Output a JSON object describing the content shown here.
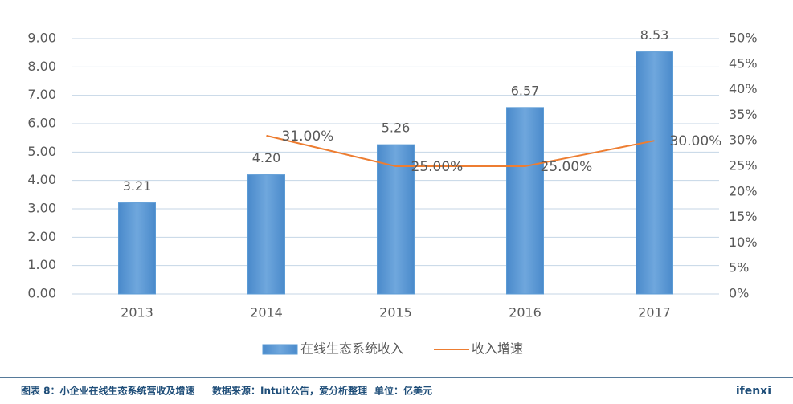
{
  "chart_data": {
    "type": "combo",
    "categories": [
      "2013",
      "2014",
      "2015",
      "2016",
      "2017"
    ],
    "series": [
      {
        "name": "在线生态系统收入",
        "type": "bar",
        "color": "#5b9bd5",
        "values": [
          3.21,
          4.2,
          5.26,
          6.57,
          8.53
        ],
        "value_labels": [
          "3.21",
          "4.20",
          "5.26",
          "6.57",
          "8.53"
        ]
      },
      {
        "name": "收入增速",
        "type": "line",
        "axis": "y2",
        "color": "#ed7d31",
        "values": [
          null,
          31,
          25,
          25,
          30
        ],
        "value_labels": [
          null,
          "31.00%",
          "25.00%",
          "25.00%",
          "30.00%"
        ]
      }
    ],
    "ylim": [
      0,
      9
    ],
    "yticks": [
      {
        "value": 0,
        "label": "0.00"
      },
      {
        "value": 1,
        "label": "1.00"
      },
      {
        "value": 2,
        "label": "2.00"
      },
      {
        "value": 3,
        "label": "3.00"
      },
      {
        "value": 4,
        "label": "4.00"
      },
      {
        "value": 5,
        "label": "5.00"
      },
      {
        "value": 6,
        "label": "6.00"
      },
      {
        "value": 7,
        "label": "7.00"
      },
      {
        "value": 8,
        "label": "8.00"
      },
      {
        "value": 9,
        "label": "9.00"
      }
    ],
    "y2lim": [
      0,
      50
    ],
    "y2ticks": [
      {
        "value": 0,
        "label": "0%"
      },
      {
        "value": 5,
        "label": "5%"
      },
      {
        "value": 10,
        "label": "10%"
      },
      {
        "value": 15,
        "label": "15%"
      },
      {
        "value": 20,
        "label": "20%"
      },
      {
        "value": 25,
        "label": "25%"
      },
      {
        "value": 30,
        "label": "30%"
      },
      {
        "value": 35,
        "label": "35%"
      },
      {
        "value": 40,
        "label": "40%"
      },
      {
        "value": 45,
        "label": "45%"
      },
      {
        "value": 50,
        "label": "50%"
      }
    ],
    "grid": true,
    "legend": "bottom",
    "caption": "图表 8：小企业在线生态系统营收及增速",
    "source": "数据来源：Intuit公告，爱分析整理",
    "unit": "单位：亿美元",
    "brand": "ifenxi"
  }
}
